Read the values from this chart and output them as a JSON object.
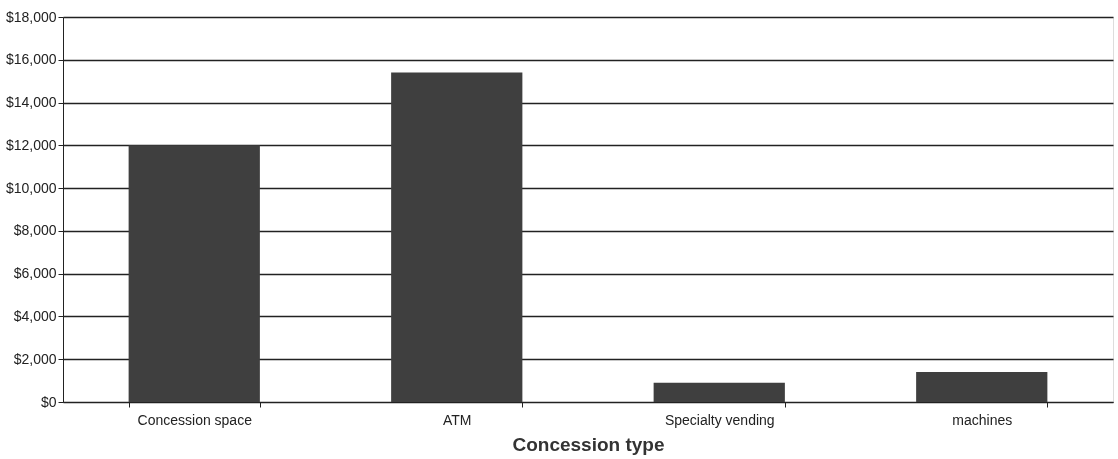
{
  "chart_data": {
    "type": "bar",
    "xlabel": "Concession type",
    "categories": [
      "Concession space",
      "ATM",
      "Specialty vending",
      "machines"
    ],
    "values": [
      12000,
      15400,
      900,
      1400
    ],
    "color": "#3f3f3f",
    "ylim": [
      0,
      18000
    ],
    "yticks": [
      {
        "value": 0,
        "label": "$0"
      },
      {
        "value": 2000,
        "label": "$2,000"
      },
      {
        "value": 4000,
        "label": "$4,000"
      },
      {
        "value": 6000,
        "label": "$6,000"
      },
      {
        "value": 8000,
        "label": "$8,000"
      },
      {
        "value": 10000,
        "label": "$10,000"
      },
      {
        "value": 12000,
        "label": "$12,000"
      },
      {
        "value": 14000,
        "label": "$14,000"
      },
      {
        "value": 16000,
        "label": "$16,000"
      },
      {
        "value": 18000,
        "label": "$18,000"
      }
    ],
    "grid": "y"
  }
}
